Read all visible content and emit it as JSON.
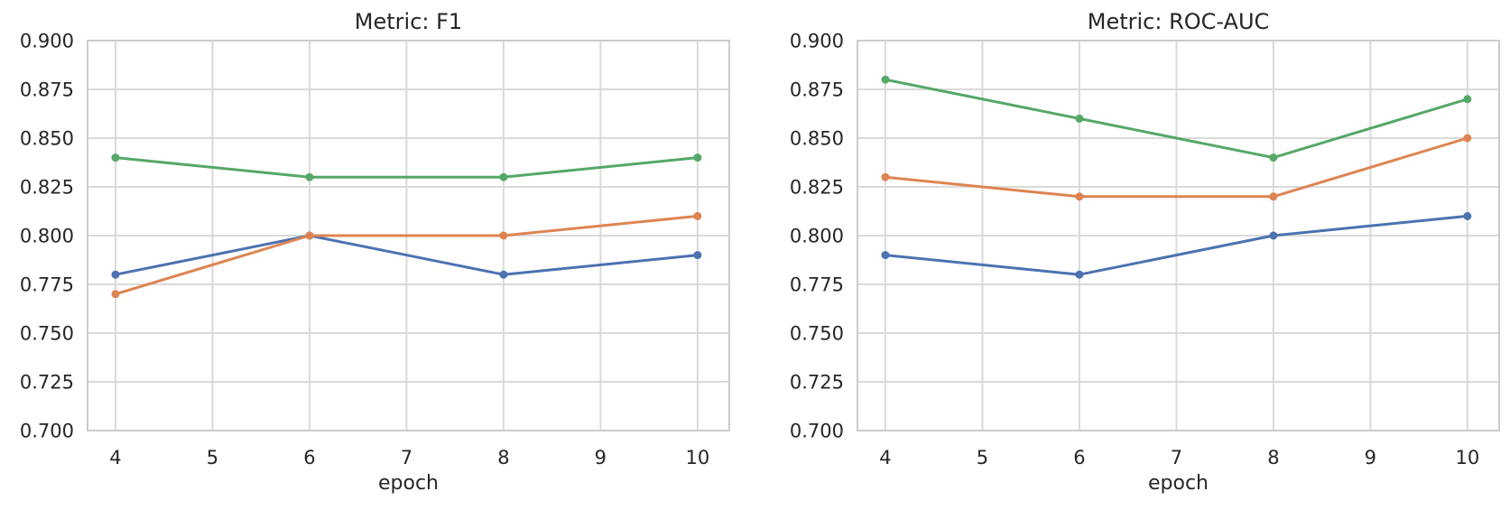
{
  "figure": {
    "background": "#ffffff",
    "text_color": "#262626",
    "grid_color": "#dadada",
    "spine_color": "#cccccc",
    "palette": {
      "blue": "#4c72b0",
      "orange": "#dd8452",
      "green": "#55a868"
    }
  },
  "chart_data": [
    {
      "type": "line",
      "title": "Metric: F1",
      "xlabel": "epoch",
      "ylabel": "",
      "x": [
        4,
        6,
        8,
        10
      ],
      "series": [
        {
          "name": "series-blue",
          "color": "#4c72b0",
          "values": [
            0.78,
            0.8,
            0.78,
            0.79
          ]
        },
        {
          "name": "series-orange",
          "color": "#dd8452",
          "values": [
            0.77,
            0.8,
            0.8,
            0.81
          ]
        },
        {
          "name": "series-green",
          "color": "#55a868",
          "values": [
            0.84,
            0.83,
            0.83,
            0.84
          ]
        }
      ],
      "xticks": [
        4,
        5,
        6,
        7,
        8,
        9,
        10
      ],
      "xtick_labels": [
        "4",
        "5",
        "6",
        "7",
        "8",
        "9",
        "10"
      ],
      "yticks": [
        0.7,
        0.725,
        0.75,
        0.775,
        0.8,
        0.825,
        0.85,
        0.875,
        0.9
      ],
      "ytick_labels": [
        "0.700",
        "0.725",
        "0.750",
        "0.775",
        "0.800",
        "0.825",
        "0.850",
        "0.875",
        "0.900"
      ],
      "xlim": [
        3.712,
        10.327
      ],
      "ylim": [
        0.7,
        0.9
      ],
      "grid": true,
      "legend": "none",
      "marker": "circle"
    },
    {
      "type": "line",
      "title": "Metric: ROC-AUC",
      "xlabel": "epoch",
      "ylabel": "",
      "x": [
        4,
        6,
        8,
        10
      ],
      "series": [
        {
          "name": "series-blue",
          "color": "#4c72b0",
          "values": [
            0.79,
            0.78,
            0.8,
            0.81
          ]
        },
        {
          "name": "series-orange",
          "color": "#dd8452",
          "values": [
            0.83,
            0.82,
            0.82,
            0.85
          ]
        },
        {
          "name": "series-green",
          "color": "#55a868",
          "values": [
            0.88,
            0.86,
            0.84,
            0.87
          ]
        }
      ],
      "xticks": [
        4,
        5,
        6,
        7,
        8,
        9,
        10
      ],
      "xtick_labels": [
        "4",
        "5",
        "6",
        "7",
        "8",
        "9",
        "10"
      ],
      "yticks": [
        0.7,
        0.725,
        0.75,
        0.775,
        0.8,
        0.825,
        0.85,
        0.875,
        0.9
      ],
      "ytick_labels": [
        "0.700",
        "0.725",
        "0.750",
        "0.775",
        "0.800",
        "0.825",
        "0.850",
        "0.875",
        "0.900"
      ],
      "xlim": [
        3.712,
        10.327
      ],
      "ylim": [
        0.7,
        0.9
      ],
      "grid": true,
      "legend": "none",
      "marker": "circle"
    }
  ]
}
